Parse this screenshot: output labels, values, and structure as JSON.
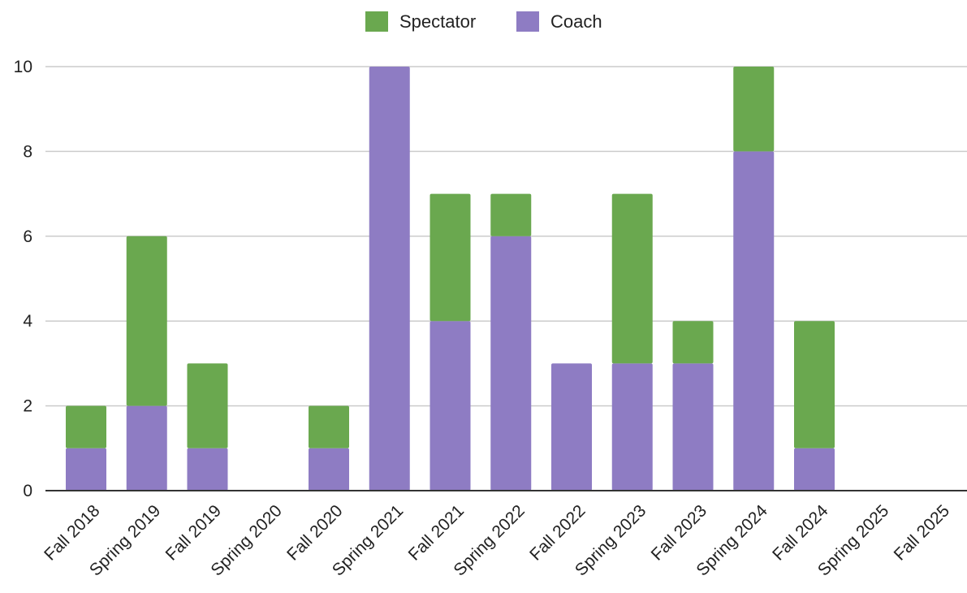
{
  "chart_data": {
    "type": "bar",
    "stacked": true,
    "categories": [
      "Fall 2018",
      "Spring 2019",
      "Fall 2019",
      "Spring 2020",
      "Fall 2020",
      "Spring 2021",
      "Fall 2021",
      "Spring 2022",
      "Fall 2022",
      "Spring 2023",
      "Fall 2023",
      "Spring 2024",
      "Fall 2024",
      "Spring 2025",
      "Fall 2025"
    ],
    "series": [
      {
        "name": "Coach",
        "color": "#8e7cc3",
        "values": [
          1,
          2,
          1,
          0,
          1,
          10,
          4,
          6,
          3,
          3,
          3,
          8,
          1,
          0,
          0
        ]
      },
      {
        "name": "Spectator",
        "color": "#6aa84f",
        "values": [
          1,
          4,
          2,
          0,
          1,
          0,
          3,
          1,
          0,
          4,
          1,
          2,
          3,
          0,
          0
        ]
      }
    ],
    "legend_order": [
      "Spectator",
      "Coach"
    ],
    "legend_position": "top-center",
    "ylim": [
      0,
      10
    ],
    "yticks": [
      0,
      2,
      4,
      6,
      8,
      10
    ],
    "grid": true,
    "title": "",
    "xlabel": "",
    "ylabel": ""
  }
}
